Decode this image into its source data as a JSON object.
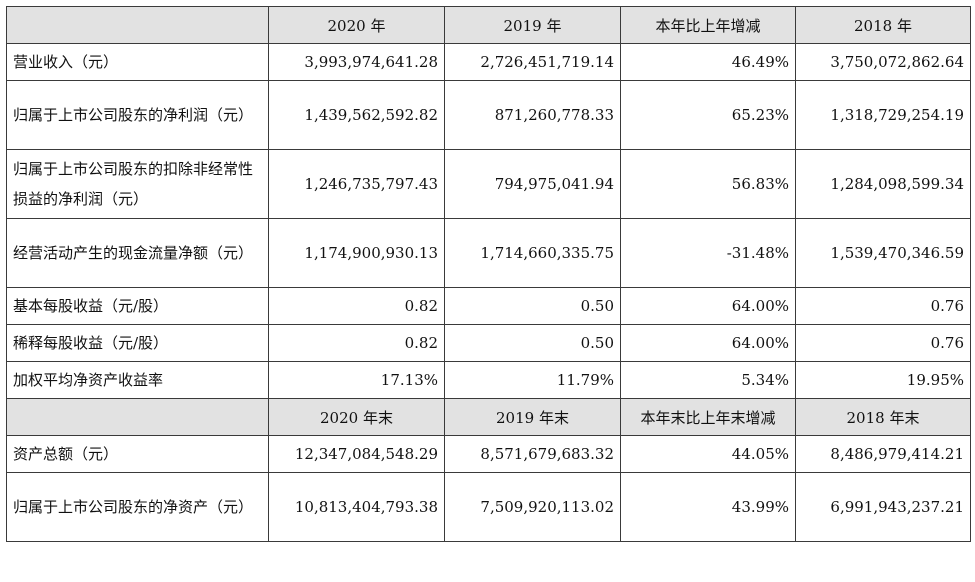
{
  "headers": {
    "income": [
      "2020 年",
      "2019 年",
      "本年比上年增减",
      "2018 年"
    ],
    "balance": [
      "2020 年末",
      "2019 年末",
      "本年末比上年末增减",
      "2018 年末"
    ]
  },
  "income_rows": [
    {
      "label": "营业收入（元）",
      "values": [
        "3,993,974,641.28",
        "2,726,451,719.14",
        "46.49%",
        "3,750,072,862.64"
      ]
    },
    {
      "label": "归属于上市公司股东的净利润（元）",
      "values": [
        "1,439,562,592.82",
        "871,260,778.33",
        "65.23%",
        "1,318,729,254.19"
      ]
    },
    {
      "label": "归属于上市公司股东的扣除非经常性损益的净利润（元）",
      "values": [
        "1,246,735,797.43",
        "794,975,041.94",
        "56.83%",
        "1,284,098,599.34"
      ]
    },
    {
      "label": "经营活动产生的现金流量净额（元）",
      "values": [
        "1,174,900,930.13",
        "1,714,660,335.75",
        "-31.48%",
        "1,539,470,346.59"
      ]
    },
    {
      "label": "基本每股收益（元/股）",
      "values": [
        "0.82",
        "0.50",
        "64.00%",
        "0.76"
      ]
    },
    {
      "label": "稀释每股收益（元/股）",
      "values": [
        "0.82",
        "0.50",
        "64.00%",
        "0.76"
      ]
    },
    {
      "label": "加权平均净资产收益率",
      "values": [
        "17.13%",
        "11.79%",
        "5.34%",
        "19.95%"
      ]
    }
  ],
  "balance_rows": [
    {
      "label": "资产总额（元）",
      "values": [
        "12,347,084,548.29",
        "8,571,679,683.32",
        "44.05%",
        "8,486,979,414.21"
      ]
    },
    {
      "label": "归属于上市公司股东的净资产（元）",
      "values": [
        "10,813,404,793.38",
        "7,509,920,113.02",
        "43.99%",
        "6,991,943,237.21"
      ]
    }
  ]
}
